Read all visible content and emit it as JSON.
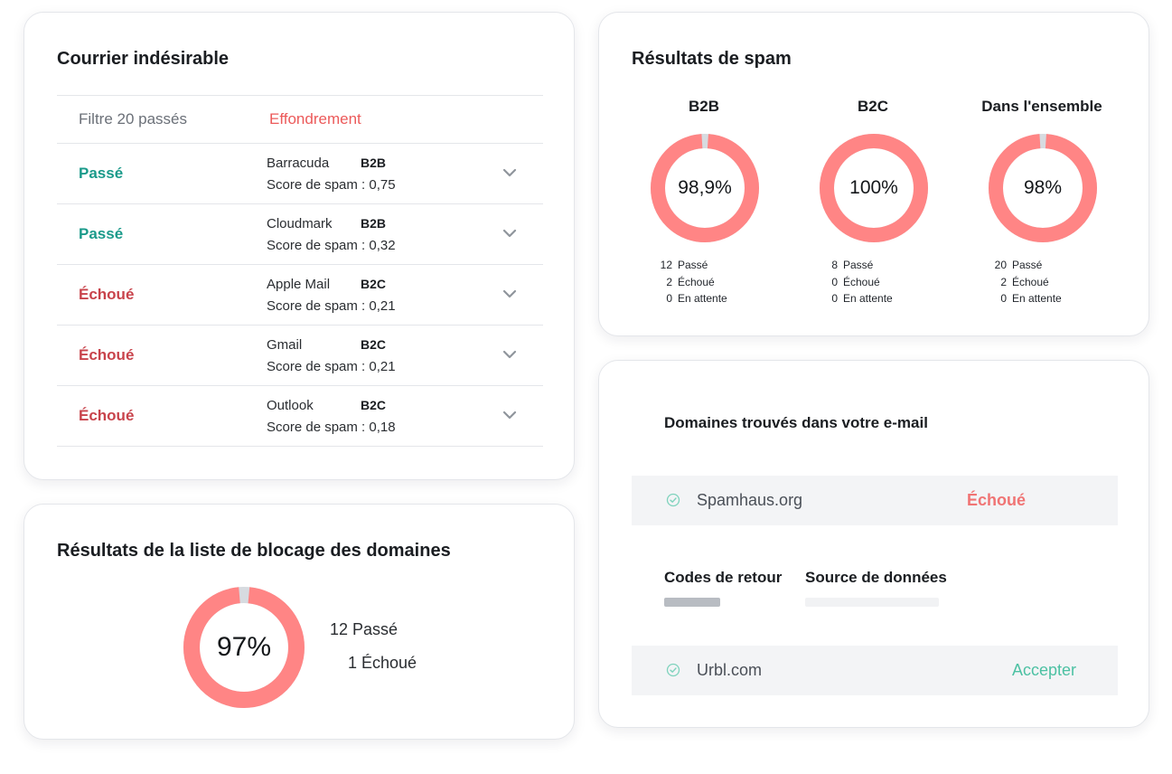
{
  "spam_card": {
    "title": "Courrier indésirable",
    "filter_text": "Filtre 20 passés",
    "breakdown_label": "Effondrement",
    "rows": [
      {
        "status": "Passé",
        "state": "pass",
        "provider": "Barracuda",
        "type": "B2B",
        "score": "Score de spam : 0,75"
      },
      {
        "status": "Passé",
        "state": "pass",
        "provider": "Cloudmark",
        "type": "B2B",
        "score": "Score de spam : 0,32"
      },
      {
        "status": "Échoué",
        "state": "fail",
        "provider": "Apple Mail",
        "type": "B2C",
        "score": "Score de spam : 0,21"
      },
      {
        "status": "Échoué",
        "state": "fail",
        "provider": "Gmail",
        "type": "B2C",
        "score": "Score de spam : 0,21"
      },
      {
        "status": "Échoué",
        "state": "fail",
        "provider": "Outlook",
        "type": "B2C",
        "score": "Score de spam : 0,18"
      }
    ]
  },
  "blocklist_card": {
    "title": "Résultats de la liste de blocage des domaines",
    "percent_label": "97%",
    "pass_fraction": 0.97,
    "passed_count": "12",
    "passed_label": "Passé",
    "failed_count": "1",
    "failed_label": "Échoué"
  },
  "spam_results_card": {
    "title": "Résultats de spam",
    "segments": [
      {
        "title": "B2B",
        "percent_label": "98,9%",
        "pass_fraction": 0.989,
        "passed": "12",
        "failed": "2",
        "pending": "0"
      },
      {
        "title": "B2C",
        "percent_label": "100%",
        "pass_fraction": 1.0,
        "passed": "8",
        "failed": "0",
        "pending": "0"
      },
      {
        "title": "Dans l'ensemble",
        "percent_label": "98%",
        "pass_fraction": 0.98,
        "passed": "20",
        "failed": "2",
        "pending": "0"
      }
    ],
    "labels": {
      "passed": "Passé",
      "failed": "Échoué",
      "pending": "En attente"
    }
  },
  "domains_card": {
    "title": "Domaines trouvés dans votre e-mail",
    "domains": [
      {
        "name": "Spamhaus.org",
        "status": "Échoué"
      },
      {
        "name": "Urbl.com",
        "status": "Accepter"
      }
    ],
    "return_codes_label": "Codes de retour",
    "data_source_label": "Source de données"
  },
  "colors": {
    "donut": "#ff8585",
    "donut_remainder": "#d7dbe0",
    "pass": "#1a9a8a",
    "fail": "#c8434b",
    "accept": "#4cc1a3"
  }
}
